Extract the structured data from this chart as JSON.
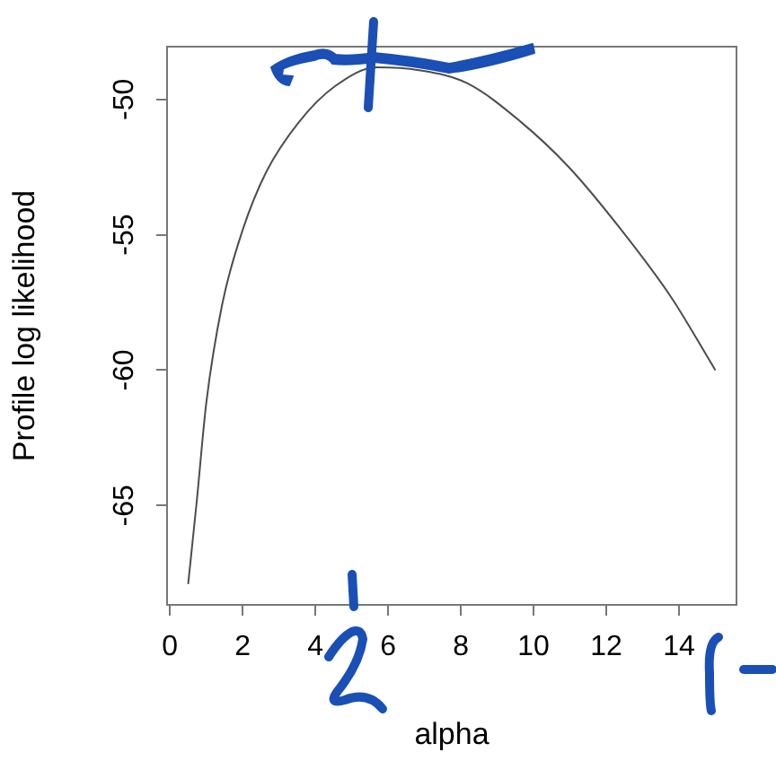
{
  "chart_data": {
    "type": "line",
    "xlabel": "alpha",
    "ylabel": "Profile log likelihood",
    "x": [
      0.5,
      0.74,
      1.0,
      1.44,
      1.98,
      2.64,
      3.55,
      4.54,
      5.69,
      6.85,
      8.17,
      9.65,
      10.97,
      12.46,
      13.78,
      15.0
    ],
    "values": [
      -67.9,
      -64.8,
      -61.2,
      -57.55,
      -54.9,
      -52.7,
      -50.83,
      -49.51,
      -48.81,
      -48.92,
      -49.4,
      -50.83,
      -52.5,
      -54.9,
      -57.3,
      -60.0
    ],
    "color": "#4d4d4d",
    "marker": "none",
    "xlim": [
      -0.08,
      15.58
    ],
    "ylim": [
      -68.67,
      -48.05
    ],
    "xticks": [
      0,
      2,
      4,
      6,
      8,
      10,
      12,
      14
    ],
    "yticks": [
      -65,
      -60,
      -55,
      -50
    ]
  }
}
